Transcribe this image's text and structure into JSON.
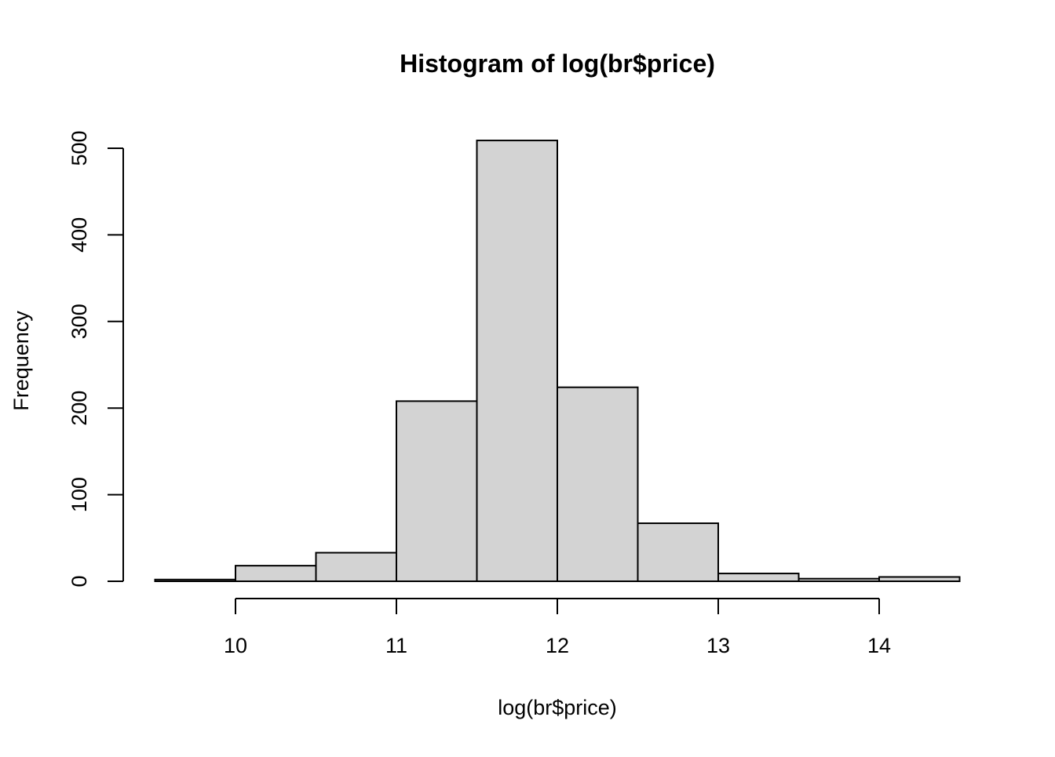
{
  "chart_data": {
    "type": "bar",
    "title": "Histogram of log(br$price)",
    "xlabel": "log(br$price)",
    "ylabel": "Frequency",
    "bins": [
      {
        "start": 9.5,
        "end": 10.0,
        "count": 2
      },
      {
        "start": 10.0,
        "end": 10.5,
        "count": 18
      },
      {
        "start": 10.5,
        "end": 11.0,
        "count": 33
      },
      {
        "start": 11.0,
        "end": 11.5,
        "count": 208
      },
      {
        "start": 11.5,
        "end": 12.0,
        "count": 509
      },
      {
        "start": 12.0,
        "end": 12.5,
        "count": 224
      },
      {
        "start": 12.5,
        "end": 13.0,
        "count": 67
      },
      {
        "start": 13.0,
        "end": 13.5,
        "count": 9
      },
      {
        "start": 13.5,
        "end": 14.0,
        "count": 3
      },
      {
        "start": 14.0,
        "end": 14.5,
        "count": 5
      }
    ],
    "xticks": [
      10,
      11,
      12,
      13,
      14
    ],
    "yticks": [
      0,
      100,
      200,
      300,
      400,
      500
    ],
    "xlim": [
      9.5,
      14.5
    ],
    "ylim": [
      0,
      509
    ],
    "bar_fill": "#d3d3d3",
    "bar_stroke": "#000000",
    "grid": false,
    "legend": "none"
  }
}
